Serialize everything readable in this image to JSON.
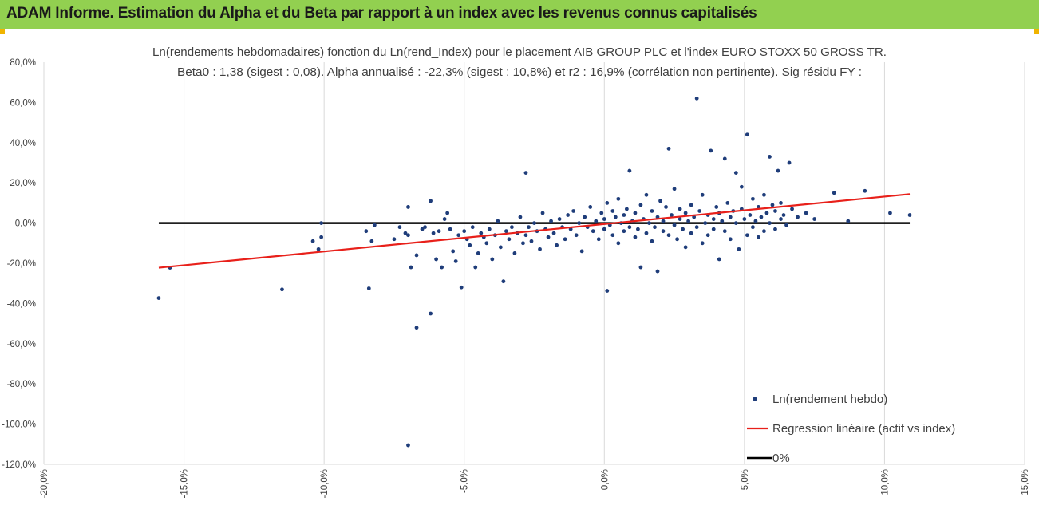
{
  "header": {
    "title": "ADAM Informe. Estimation du Alpha et du Beta par rapport à un index avec les revenus connus capitalisés"
  },
  "colors": {
    "banner": "#92d050",
    "points": "#1f3d7a",
    "regression": "#e8201a",
    "zero": "#000000",
    "grid": "#d9d9d9"
  },
  "chart_data": {
    "type": "scatter",
    "title_line1": "Ln(rendements hebdomadaires) fonction du Ln(rend_Index) pour le placement AIB GROUP PLC et l'index EURO STOXX 50 GROSS TR.",
    "title_line2": "Beta0 : 1,38 (sigest : 0,08). Alpha annualisé : -22,3% (sigest : 10,8%) et r2 : 16,9% (corrélation non pertinente). Sig résidu FY :",
    "xlim": [
      -0.2,
      0.15
    ],
    "ylim": [
      -1.2,
      0.8
    ],
    "x_ticks": [
      -0.2,
      -0.15,
      -0.1,
      -0.05,
      0.0,
      0.05,
      0.1,
      0.15
    ],
    "x_tick_labels": [
      "-20,0%",
      "-15,0%",
      "-10,0%",
      "-5,0%",
      "0,0%",
      "5,0%",
      "10,0%",
      "15,0%"
    ],
    "y_ticks": [
      0.8,
      0.6,
      0.4,
      0.2,
      0.0,
      -0.2,
      -0.4,
      -0.6,
      -0.8,
      -1.0,
      -1.2
    ],
    "y_tick_labels": [
      "80,0%",
      "60,0%",
      "40,0%",
      "20,0%",
      "0,0%",
      "-20,0%",
      "-40,0%",
      "-60,0%",
      "-80,0%",
      "-100,0%",
      "-120,0%"
    ],
    "grid": "vertical",
    "legend": [
      "Ln(rendement hebdo)",
      "Regression linéaire (actif vs index)",
      "0%"
    ],
    "regression": {
      "x": [
        -0.159,
        0.109
      ],
      "y": [
        -0.222,
        0.144
      ]
    },
    "zero_line": {
      "x": [
        -0.159,
        0.109
      ],
      "y": [
        0,
        0
      ]
    },
    "series": [
      {
        "name": "Ln(rendement hebdo)",
        "points": [
          [
            -0.159,
            -0.373
          ],
          [
            -0.155,
            -0.222
          ],
          [
            -0.115,
            -0.33
          ],
          [
            -0.104,
            -0.09
          ],
          [
            -0.102,
            -0.13
          ],
          [
            -0.101,
            -0.07
          ],
          [
            -0.101,
            0.0
          ],
          [
            -0.085,
            -0.04
          ],
          [
            -0.084,
            -0.325
          ],
          [
            -0.083,
            -0.09
          ],
          [
            -0.082,
            -0.01
          ],
          [
            -0.075,
            -0.08
          ],
          [
            -0.073,
            -0.02
          ],
          [
            -0.071,
            -0.05
          ],
          [
            -0.07,
            -0.06
          ],
          [
            -0.07,
            -1.105
          ],
          [
            -0.07,
            0.08
          ],
          [
            -0.069,
            -0.22
          ],
          [
            -0.067,
            -0.16
          ],
          [
            -0.067,
            -0.52
          ],
          [
            -0.065,
            -0.03
          ],
          [
            -0.064,
            -0.02
          ],
          [
            -0.062,
            -0.45
          ],
          [
            -0.062,
            0.11
          ],
          [
            -0.061,
            -0.05
          ],
          [
            -0.06,
            -0.18
          ],
          [
            -0.059,
            -0.04
          ],
          [
            -0.058,
            -0.22
          ],
          [
            -0.057,
            0.02
          ],
          [
            -0.056,
            0.05
          ],
          [
            -0.055,
            -0.03
          ],
          [
            -0.054,
            -0.14
          ],
          [
            -0.053,
            -0.19
          ],
          [
            -0.052,
            -0.06
          ],
          [
            -0.051,
            -0.32
          ],
          [
            -0.05,
            -0.04
          ],
          [
            -0.049,
            -0.08
          ],
          [
            -0.048,
            -0.11
          ],
          [
            -0.047,
            -0.02
          ],
          [
            -0.046,
            -0.22
          ],
          [
            -0.045,
            -0.15
          ],
          [
            -0.044,
            -0.05
          ],
          [
            -0.043,
            -0.07
          ],
          [
            -0.042,
            -0.1
          ],
          [
            -0.041,
            -0.03
          ],
          [
            -0.04,
            -0.18
          ],
          [
            -0.039,
            -0.06
          ],
          [
            -0.038,
            0.01
          ],
          [
            -0.037,
            -0.12
          ],
          [
            -0.036,
            -0.29
          ],
          [
            -0.035,
            -0.04
          ],
          [
            -0.034,
            -0.08
          ],
          [
            -0.033,
            -0.02
          ],
          [
            -0.032,
            -0.15
          ],
          [
            -0.031,
            -0.05
          ],
          [
            -0.03,
            0.03
          ],
          [
            -0.029,
            -0.1
          ],
          [
            -0.028,
            0.25
          ],
          [
            -0.028,
            -0.06
          ],
          [
            -0.027,
            -0.02
          ],
          [
            -0.026,
            -0.09
          ],
          [
            -0.025,
            0.0
          ],
          [
            -0.024,
            -0.04
          ],
          [
            -0.023,
            -0.13
          ],
          [
            -0.022,
            0.05
          ],
          [
            -0.021,
            -0.03
          ],
          [
            -0.02,
            -0.07
          ],
          [
            -0.019,
            0.01
          ],
          [
            -0.018,
            -0.05
          ],
          [
            -0.017,
            -0.11
          ],
          [
            -0.016,
            0.02
          ],
          [
            -0.015,
            -0.02
          ],
          [
            -0.014,
            -0.08
          ],
          [
            -0.013,
            0.04
          ],
          [
            -0.012,
            -0.03
          ],
          [
            -0.011,
            0.06
          ],
          [
            -0.01,
            -0.06
          ],
          [
            -0.009,
            0.0
          ],
          [
            -0.008,
            -0.14
          ],
          [
            -0.007,
            0.03
          ],
          [
            -0.006,
            -0.02
          ],
          [
            -0.005,
            0.08
          ],
          [
            -0.004,
            -0.04
          ],
          [
            -0.003,
            0.01
          ],
          [
            -0.002,
            -0.08
          ],
          [
            -0.001,
            0.05
          ],
          [
            0.0,
            -0.03
          ],
          [
            0.0,
            0.02
          ],
          [
            0.001,
            -0.337
          ],
          [
            0.001,
            0.1
          ],
          [
            0.002,
            -0.01
          ],
          [
            0.003,
            0.06
          ],
          [
            0.003,
            -0.06
          ],
          [
            0.004,
            0.03
          ],
          [
            0.005,
            -0.1
          ],
          [
            0.005,
            0.12
          ],
          [
            0.006,
            0.0
          ],
          [
            0.007,
            0.04
          ],
          [
            0.007,
            -0.04
          ],
          [
            0.008,
            0.07
          ],
          [
            0.009,
            -0.02
          ],
          [
            0.009,
            0.26
          ],
          [
            0.01,
            0.01
          ],
          [
            0.011,
            -0.07
          ],
          [
            0.011,
            0.05
          ],
          [
            0.012,
            -0.03
          ],
          [
            0.013,
            0.09
          ],
          [
            0.013,
            -0.22
          ],
          [
            0.014,
            0.02
          ],
          [
            0.015,
            -0.05
          ],
          [
            0.015,
            0.14
          ],
          [
            0.016,
            0.0
          ],
          [
            0.017,
            -0.09
          ],
          [
            0.017,
            0.06
          ],
          [
            0.018,
            -0.02
          ],
          [
            0.019,
            0.03
          ],
          [
            0.019,
            -0.24
          ],
          [
            0.02,
            0.11
          ],
          [
            0.021,
            -0.04
          ],
          [
            0.021,
            0.01
          ],
          [
            0.022,
            0.08
          ],
          [
            0.023,
            -0.06
          ],
          [
            0.023,
            0.37
          ],
          [
            0.024,
            0.04
          ],
          [
            0.025,
            -0.01
          ],
          [
            0.025,
            0.17
          ],
          [
            0.026,
            -0.08
          ],
          [
            0.027,
            0.02
          ],
          [
            0.027,
            0.07
          ],
          [
            0.028,
            -0.03
          ],
          [
            0.029,
            0.05
          ],
          [
            0.029,
            -0.12
          ],
          [
            0.03,
            0.01
          ],
          [
            0.031,
            0.09
          ],
          [
            0.031,
            -0.05
          ],
          [
            0.032,
            0.03
          ],
          [
            0.033,
            0.62
          ],
          [
            0.033,
            -0.02
          ],
          [
            0.034,
            0.06
          ],
          [
            0.035,
            -0.1
          ],
          [
            0.035,
            0.14
          ],
          [
            0.036,
            0.0
          ],
          [
            0.037,
            0.04
          ],
          [
            0.037,
            -0.06
          ],
          [
            0.038,
            0.36
          ],
          [
            0.039,
            0.02
          ],
          [
            0.039,
            -0.03
          ],
          [
            0.04,
            0.08
          ],
          [
            0.041,
            -0.18
          ],
          [
            0.041,
            0.05
          ],
          [
            0.042,
            0.01
          ],
          [
            0.043,
            0.32
          ],
          [
            0.043,
            -0.04
          ],
          [
            0.044,
            0.1
          ],
          [
            0.045,
            0.03
          ],
          [
            0.045,
            -0.08
          ],
          [
            0.046,
            0.06
          ],
          [
            0.047,
            0.25
          ],
          [
            0.047,
            0.0
          ],
          [
            0.048,
            -0.13
          ],
          [
            0.049,
            0.07
          ],
          [
            0.049,
            0.18
          ],
          [
            0.05,
            0.02
          ],
          [
            0.051,
            -0.06
          ],
          [
            0.051,
            0.44
          ],
          [
            0.052,
            0.04
          ],
          [
            0.053,
            -0.02
          ],
          [
            0.053,
            0.12
          ],
          [
            0.054,
            0.01
          ],
          [
            0.055,
            -0.07
          ],
          [
            0.055,
            0.08
          ],
          [
            0.056,
            0.03
          ],
          [
            0.057,
            -0.04
          ],
          [
            0.057,
            0.14
          ],
          [
            0.058,
            0.05
          ],
          [
            0.059,
            0.33
          ],
          [
            0.059,
            0.0
          ],
          [
            0.06,
            0.09
          ],
          [
            0.061,
            -0.03
          ],
          [
            0.061,
            0.06
          ],
          [
            0.062,
            0.26
          ],
          [
            0.063,
            0.02
          ],
          [
            0.063,
            0.1
          ],
          [
            0.064,
            0.04
          ],
          [
            0.065,
            -0.01
          ],
          [
            0.066,
            0.3
          ],
          [
            0.067,
            0.07
          ],
          [
            0.069,
            0.03
          ],
          [
            0.072,
            0.05
          ],
          [
            0.075,
            0.02
          ],
          [
            0.082,
            0.15
          ],
          [
            0.087,
            0.01
          ],
          [
            0.093,
            0.16
          ],
          [
            0.102,
            0.05
          ],
          [
            0.109,
            0.04
          ]
        ]
      }
    ]
  }
}
